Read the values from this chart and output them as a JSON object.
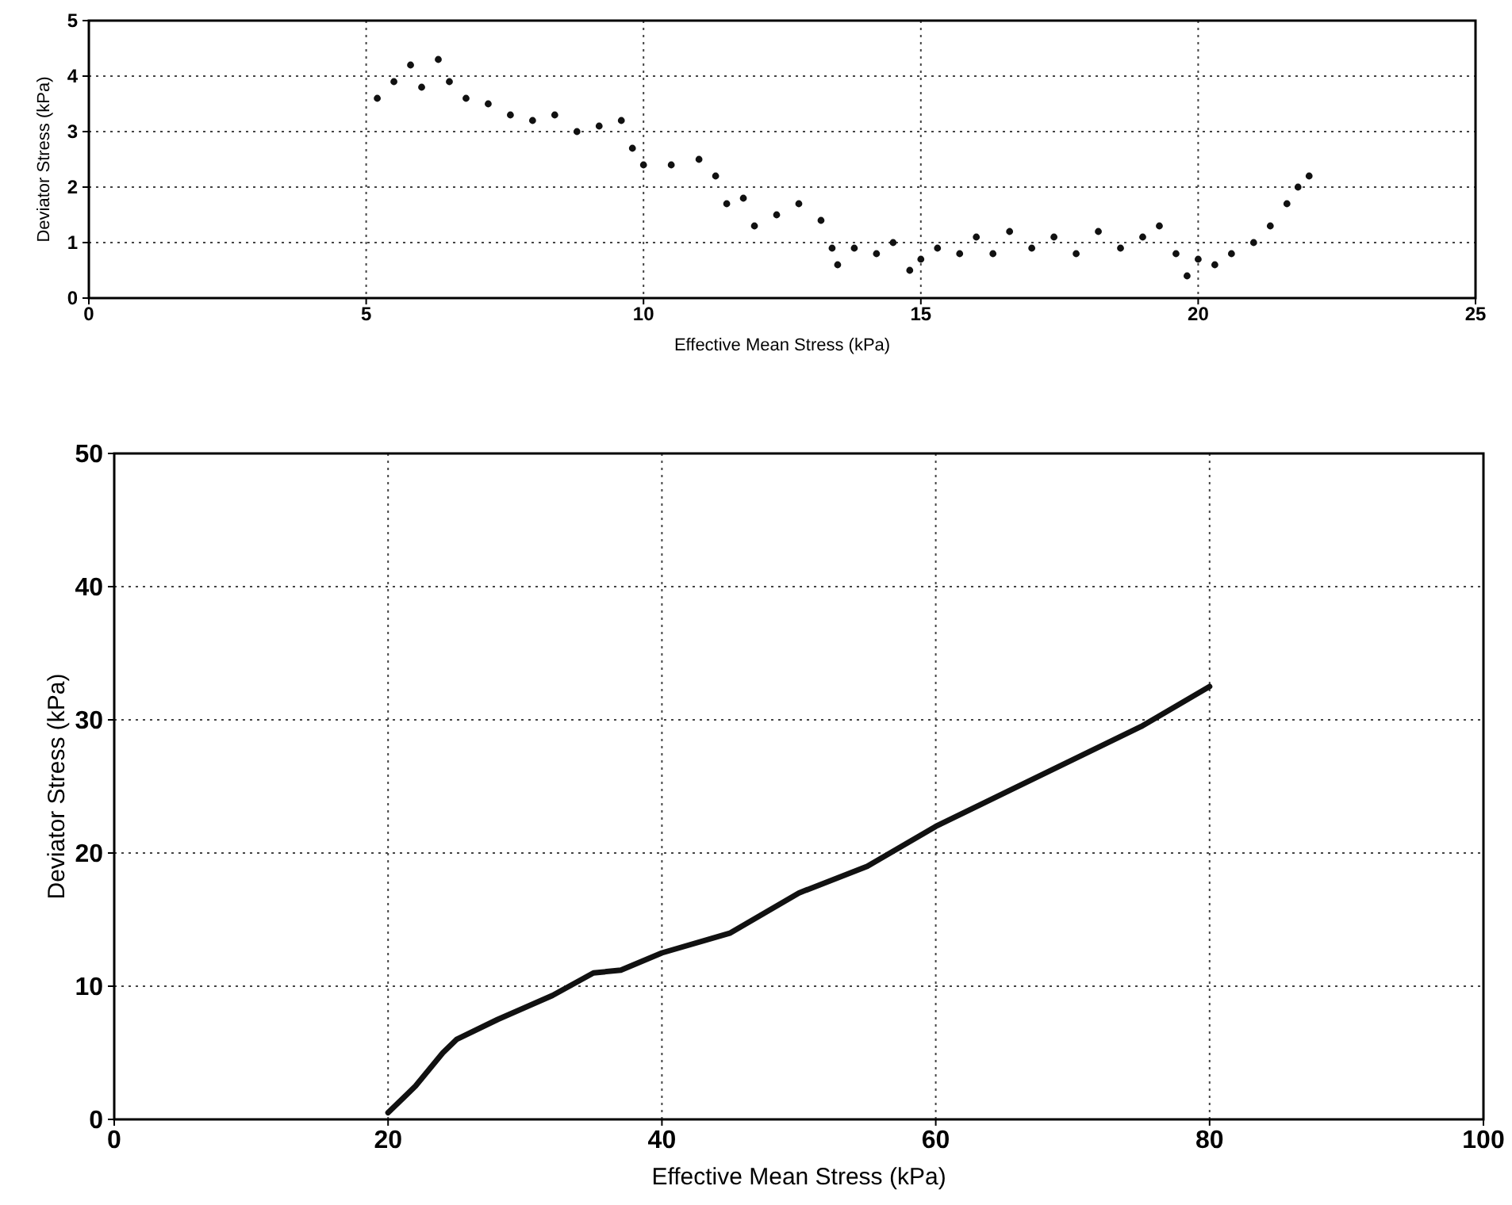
{
  "chart_data": [
    {
      "type": "scatter",
      "xlabel": "Effective Mean Stress (kPa)",
      "ylabel": "Deviator Stress (kPa)",
      "xlim": [
        0,
        25
      ],
      "ylim": [
        0,
        5
      ],
      "xticks": [
        0,
        5,
        10,
        15,
        20,
        25
      ],
      "yticks": [
        0,
        1,
        2,
        3,
        4,
        5
      ],
      "grid": true,
      "marker": "circle",
      "series": [
        {
          "color": "#111111",
          "x": [
            5.2,
            5.5,
            5.8,
            6.0,
            6.3,
            6.5,
            6.8,
            7.2,
            7.6,
            8.0,
            8.4,
            8.8,
            9.2,
            9.6,
            9.8,
            10.0,
            10.5,
            11.0,
            11.3,
            11.5,
            11.8,
            12.0,
            12.4,
            12.8,
            13.2,
            13.4,
            13.5,
            13.8,
            14.2,
            14.5,
            14.8,
            15.0,
            15.3,
            15.7,
            16.0,
            16.3,
            16.6,
            17.0,
            17.4,
            17.8,
            18.2,
            18.6,
            19.0,
            19.3,
            19.6,
            19.8,
            20.0,
            20.3,
            20.6,
            21.0,
            21.3,
            21.6,
            21.8,
            22.0
          ],
          "values": [
            3.6,
            3.9,
            4.2,
            3.8,
            4.3,
            3.9,
            3.6,
            3.5,
            3.3,
            3.2,
            3.3,
            3.0,
            3.1,
            3.2,
            2.7,
            2.4,
            2.4,
            2.5,
            2.2,
            1.7,
            1.8,
            1.3,
            1.5,
            1.7,
            1.4,
            0.9,
            0.6,
            0.9,
            0.8,
            1.0,
            0.5,
            0.7,
            0.9,
            0.8,
            1.1,
            0.8,
            1.2,
            0.9,
            1.1,
            0.8,
            1.2,
            0.9,
            1.1,
            1.3,
            0.8,
            0.4,
            0.7,
            0.6,
            0.8,
            1.0,
            1.3,
            1.7,
            2.0,
            2.2
          ]
        }
      ]
    },
    {
      "type": "line",
      "xlabel": "Effective Mean Stress (kPa)",
      "ylabel": "Deviator Stress (kPa)",
      "xlim": [
        0,
        100
      ],
      "ylim": [
        0,
        50
      ],
      "xticks": [
        0,
        20,
        40,
        60,
        80,
        100
      ],
      "yticks": [
        0,
        10,
        20,
        30,
        40,
        50
      ],
      "grid": true,
      "marker": "none",
      "line_style": "solid",
      "series": [
        {
          "color": "#111111",
          "x": [
            20,
            22,
            24,
            25,
            28,
            32,
            35,
            37,
            40,
            45,
            50,
            55,
            60,
            65,
            70,
            75,
            80
          ],
          "values": [
            0.5,
            2.5,
            5,
            6,
            7.5,
            9.3,
            11,
            11.2,
            12.5,
            14,
            17,
            19,
            22,
            24.5,
            27,
            29.5,
            32.5
          ]
        }
      ]
    }
  ]
}
